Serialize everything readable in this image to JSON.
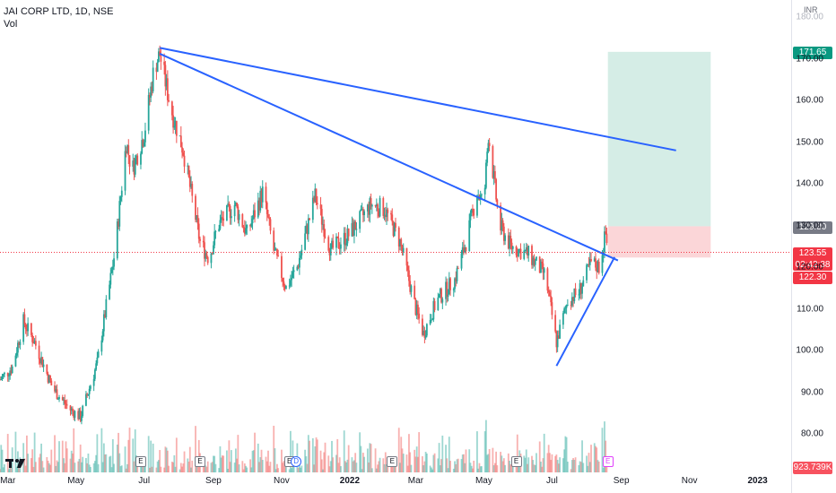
{
  "header": {
    "title": "JAI CORP LTD, 1D, NSE",
    "volume_label": "Vol"
  },
  "currency": "INR",
  "colors": {
    "up": "#26a69a",
    "down": "#ef5350",
    "trendline": "#2962ff",
    "target_zone": "#d5ede6",
    "stop_zone": "#fbd6d8",
    "tag_target": "#089981",
    "tag_entry": "#787b86",
    "tag_current": "#f23645"
  },
  "price_tags": {
    "target": "171.65",
    "entry": "129.80",
    "current_price": "123.55",
    "countdown": "02:42:38",
    "stop": "122.30",
    "volume": "923.739K"
  },
  "top_partial_label": "180.00",
  "earnings_label": "E",
  "dividend_label": "D",
  "chart_data": {
    "type": "candlestick",
    "title": "JAI CORP LTD, 1D, NSE",
    "ylim": [
      76,
      185
    ],
    "y_ticks": [
      "170.00",
      "160.00",
      "150.00",
      "140.00",
      "130.00",
      "120.00",
      "110.00",
      "100.00",
      "90.00",
      "80.00"
    ],
    "x_ticks": [
      "Mar",
      "May",
      "Jul",
      "Sep",
      "Nov",
      "2022",
      "Mar",
      "May",
      "Jul",
      "Sep",
      "Nov",
      "2023"
    ],
    "x_range": [
      "2021-02-22",
      "2023-01-31"
    ],
    "grid": false,
    "price_anchors": [
      [
        "2021-02-22",
        93
      ],
      [
        "2021-03-05",
        96
      ],
      [
        "2021-03-15",
        107
      ],
      [
        "2021-03-25",
        102
      ],
      [
        "2021-04-10",
        91
      ],
      [
        "2021-04-25",
        86
      ],
      [
        "2021-05-05",
        84
      ],
      [
        "2021-05-20",
        97
      ],
      [
        "2021-06-05",
        124
      ],
      [
        "2021-06-15",
        150
      ],
      [
        "2021-06-20",
        143
      ],
      [
        "2021-07-01",
        152
      ],
      [
        "2021-07-10",
        168
      ],
      [
        "2021-07-15",
        171
      ],
      [
        "2021-07-25",
        158
      ],
      [
        "2021-08-05",
        148
      ],
      [
        "2021-08-20",
        126
      ],
      [
        "2021-08-28",
        122
      ],
      [
        "2021-09-05",
        130
      ],
      [
        "2021-09-20",
        135
      ],
      [
        "2021-10-01",
        128
      ],
      [
        "2021-10-15",
        138
      ],
      [
        "2021-10-25",
        124
      ],
      [
        "2021-11-05",
        115
      ],
      [
        "2021-11-15",
        120
      ],
      [
        "2021-12-01",
        137
      ],
      [
        "2021-12-15",
        124
      ],
      [
        "2022-01-01",
        128
      ],
      [
        "2022-01-20",
        135
      ],
      [
        "2022-02-01",
        134
      ],
      [
        "2022-02-15",
        126
      ],
      [
        "2022-03-01",
        110
      ],
      [
        "2022-03-08",
        104
      ],
      [
        "2022-03-20",
        112
      ],
      [
        "2022-04-05",
        117
      ],
      [
        "2022-04-15",
        126
      ],
      [
        "2022-04-25",
        138
      ],
      [
        "2022-05-01",
        135
      ],
      [
        "2022-05-05",
        152
      ],
      [
        "2022-05-15",
        130
      ],
      [
        "2022-05-25",
        125
      ],
      [
        "2022-06-10",
        123
      ],
      [
        "2022-06-25",
        118
      ],
      [
        "2022-07-05",
        102
      ],
      [
        "2022-07-15",
        112
      ],
      [
        "2022-07-25",
        114
      ],
      [
        "2022-08-05",
        121
      ],
      [
        "2022-08-12",
        120
      ],
      [
        "2022-08-18",
        128
      ],
      [
        "2022-08-20",
        123.55
      ]
    ],
    "earnings_dates": [
      "2021-06-28",
      "2021-08-20",
      "2021-11-08",
      "2022-02-08",
      "2022-05-30",
      "2022-08-20"
    ],
    "dividend_dates": [
      "2021-11-14"
    ],
    "trendlines": [
      {
        "from": [
          "2021-07-15",
          172.6
        ],
        "to": [
          "2022-10-20",
          148.0
        ]
      },
      {
        "from": [
          "2021-07-15",
          171.2
        ],
        "to": [
          "2022-08-29",
          121.6
        ]
      },
      {
        "from": [
          "2022-07-05",
          96.3
        ],
        "to": [
          "2022-08-26",
          122.4
        ]
      }
    ],
    "position": {
      "start": "2022-08-20",
      "end": "2022-11-20",
      "target": 171.65,
      "entry": 129.8,
      "stop": 122.3
    },
    "current_price": 123.55
  }
}
